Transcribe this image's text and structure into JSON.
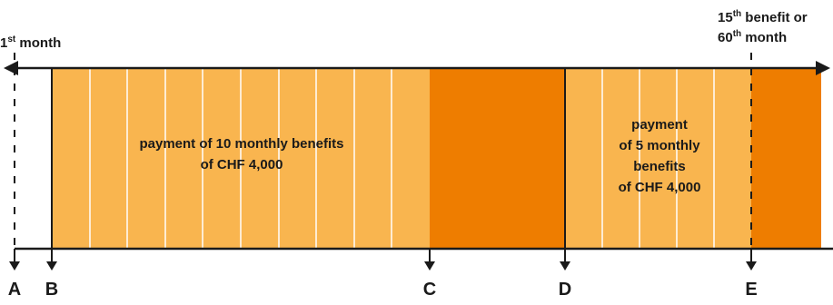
{
  "start_label": {
    "main": "1",
    "sup": "st",
    "rest": " month"
  },
  "end_label": {
    "line1": {
      "main": "15",
      "sup": "th",
      "rest": " benefit or"
    },
    "line2": {
      "main": "60",
      "sup": "th",
      "rest": " month"
    }
  },
  "blocks": {
    "first": {
      "lines": [
        "payment of 10 monthly benefits",
        "of CHF 4,000"
      ]
    },
    "second": {
      "lines": [
        "payment",
        "of 5 monthly",
        "benefits",
        "of CHF 4,000"
      ]
    }
  },
  "points": [
    "A",
    "B",
    "C",
    "D",
    "E"
  ],
  "colors": {
    "light": "#F9B54F",
    "dark": "#EE7D00",
    "line": "#1a1a1a"
  }
}
